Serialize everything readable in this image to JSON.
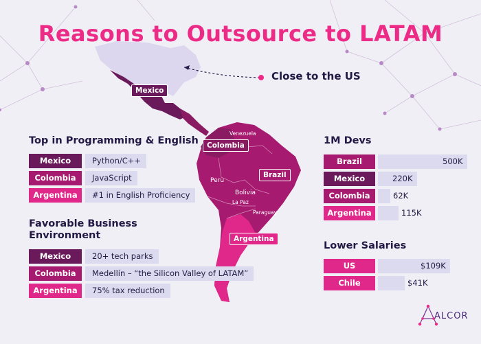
{
  "title": "Reasons to Outsource to LATAM",
  "close_to_us": "Close to the US",
  "map_labels": {
    "mexico": "Mexico",
    "colombia": "Colombia",
    "brazil": "Brazil",
    "argentina": "Argentina",
    "venezuela": "Venezuela",
    "peru": "Peru",
    "bolivia": "Bolivia",
    "la_paz": "La Paz",
    "paraguay": "Paraguay"
  },
  "programming": {
    "title": "Top in Programming & English",
    "rows": [
      {
        "country": "Mexico",
        "value": "Python/C++"
      },
      {
        "country": "Colombia",
        "value": "JavaScript"
      },
      {
        "country": "Argentina",
        "value": "#1 in English Proficiency"
      }
    ]
  },
  "business": {
    "title_line1": "Favorable Business",
    "title_line2": "Environment",
    "rows": [
      {
        "country": "Mexico",
        "value": "20+ tech parks"
      },
      {
        "country": "Colombia",
        "value": "Medellín – “the Silicon Valley of LATAM”"
      },
      {
        "country": "Argentina",
        "value": "75% tax reduction"
      }
    ]
  },
  "devs": {
    "title": "1M Devs",
    "rows": [
      {
        "country": "Brazil",
        "value": "500K",
        "amount": 500
      },
      {
        "country": "Mexico",
        "value": "220K",
        "amount": 220
      },
      {
        "country": "Colombia",
        "value": "62K",
        "amount": 62
      },
      {
        "country": "Argentina",
        "value": "115K",
        "amount": 115
      }
    ]
  },
  "salaries": {
    "title": "Lower Salaries",
    "rows": [
      {
        "country": "US",
        "value": "$109K",
        "amount": 109
      },
      {
        "country": "Chile",
        "value": "$41K",
        "amount": 41
      }
    ]
  },
  "brand": "ALCOR",
  "colors": {
    "title": "#ec2b86",
    "dark": "#6a1a5a",
    "mid": "#a61a6f",
    "light": "#e0288a",
    "track": "#dcdaee"
  }
}
